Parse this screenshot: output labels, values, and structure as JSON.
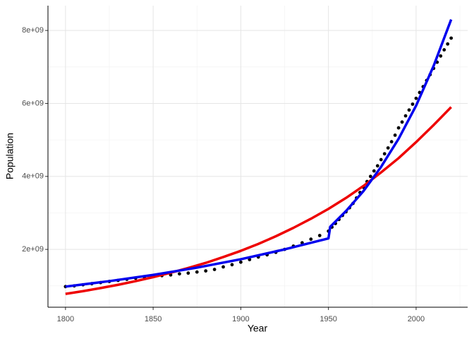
{
  "chart_data": {
    "type": "scatter",
    "x_label": "Year",
    "y_label": "Population",
    "xlim": [
      1790,
      2029.4
    ],
    "ylim": [
      415000000,
      8680000000
    ],
    "xticks": [
      1800,
      1850,
      1900,
      1950,
      2000
    ],
    "yticks": [
      {
        "value": 2000000000,
        "label": "2e+09"
      },
      {
        "value": 4000000000,
        "label": "4e+09"
      },
      {
        "value": 6000000000,
        "label": "6e+09"
      },
      {
        "value": 8000000000,
        "label": "8e+09"
      }
    ],
    "xminorticks": [
      1825,
      1875,
      1925,
      1975,
      2025
    ],
    "yminorticks": [
      1000000000,
      3000000000,
      5000000000,
      7000000000
    ],
    "grid": true,
    "series": [
      {
        "type": "scatter",
        "color": "#000000",
        "x": [
          1800,
          1805,
          1810,
          1815,
          1820,
          1825,
          1830,
          1835,
          1840,
          1845,
          1850,
          1855,
          1860,
          1865,
          1870,
          1875,
          1880,
          1885,
          1890,
          1895,
          1900,
          1905,
          1910,
          1915,
          1920,
          1925,
          1930,
          1935,
          1940,
          1945,
          1950,
          1952,
          1954,
          1956,
          1958,
          1960,
          1962,
          1964,
          1966,
          1968,
          1970,
          1972,
          1974,
          1976,
          1978,
          1980,
          1982,
          1984,
          1986,
          1988,
          1990,
          1992,
          1994,
          1996,
          1998,
          2000,
          2002,
          2004,
          2006,
          2008,
          2010,
          2012,
          2014,
          2016,
          2018,
          2020
        ],
        "values": [
          980000000,
          1000000000,
          1030000000,
          1060000000,
          1090000000,
          1120000000,
          1150000000,
          1180000000,
          1210000000,
          1240000000,
          1260000000,
          1280000000,
          1300000000,
          1330000000,
          1350000000,
          1380000000,
          1410000000,
          1450000000,
          1520000000,
          1580000000,
          1650000000,
          1720000000,
          1790000000,
          1850000000,
          1920000000,
          2000000000,
          2090000000,
          2180000000,
          2280000000,
          2380000000,
          2500000000,
          2610000000,
          2710000000,
          2820000000,
          2930000000,
          3030000000,
          3140000000,
          3260000000,
          3410000000,
          3560000000,
          3700000000,
          3860000000,
          4000000000,
          4150000000,
          4290000000,
          4460000000,
          4620000000,
          4780000000,
          4950000000,
          5130000000,
          5330000000,
          5490000000,
          5660000000,
          5820000000,
          5980000000,
          6140000000,
          6300000000,
          6460000000,
          6630000000,
          6790000000,
          6960000000,
          7130000000,
          7300000000,
          7470000000,
          7630000000,
          7790000000
        ]
      },
      {
        "type": "line",
        "color": "#ee0000",
        "x": [
          1800,
          1810,
          1820,
          1830,
          1840,
          1850,
          1860,
          1870,
          1880,
          1890,
          1900,
          1910,
          1920,
          1930,
          1940,
          1950,
          1960,
          1970,
          1980,
          1990,
          2000,
          2010,
          2020
        ],
        "values": [
          780000000,
          855000000,
          940000000,
          1030000000,
          1130000000,
          1240000000,
          1360000000,
          1490000000,
          1630000000,
          1790000000,
          1960000000,
          2150000000,
          2360000000,
          2590000000,
          2840000000,
          3110000000,
          3410000000,
          3740000000,
          4110000000,
          4500000000,
          4940000000,
          5410000000,
          5900000000
        ]
      },
      {
        "type": "line",
        "color": "#0000ee",
        "x": [
          1800,
          1825,
          1850,
          1875,
          1900,
          1925,
          1950,
          1951,
          1960,
          1970,
          1980,
          1990,
          2000,
          2010,
          2020
        ],
        "values": [
          980000000,
          1130000000,
          1300000000,
          1500000000,
          1730000000,
          2000000000,
          2300000000,
          2620000000,
          3050000000,
          3600000000,
          4260000000,
          5030000000,
          5940000000,
          7030000000,
          8300000000
        ]
      }
    ]
  }
}
